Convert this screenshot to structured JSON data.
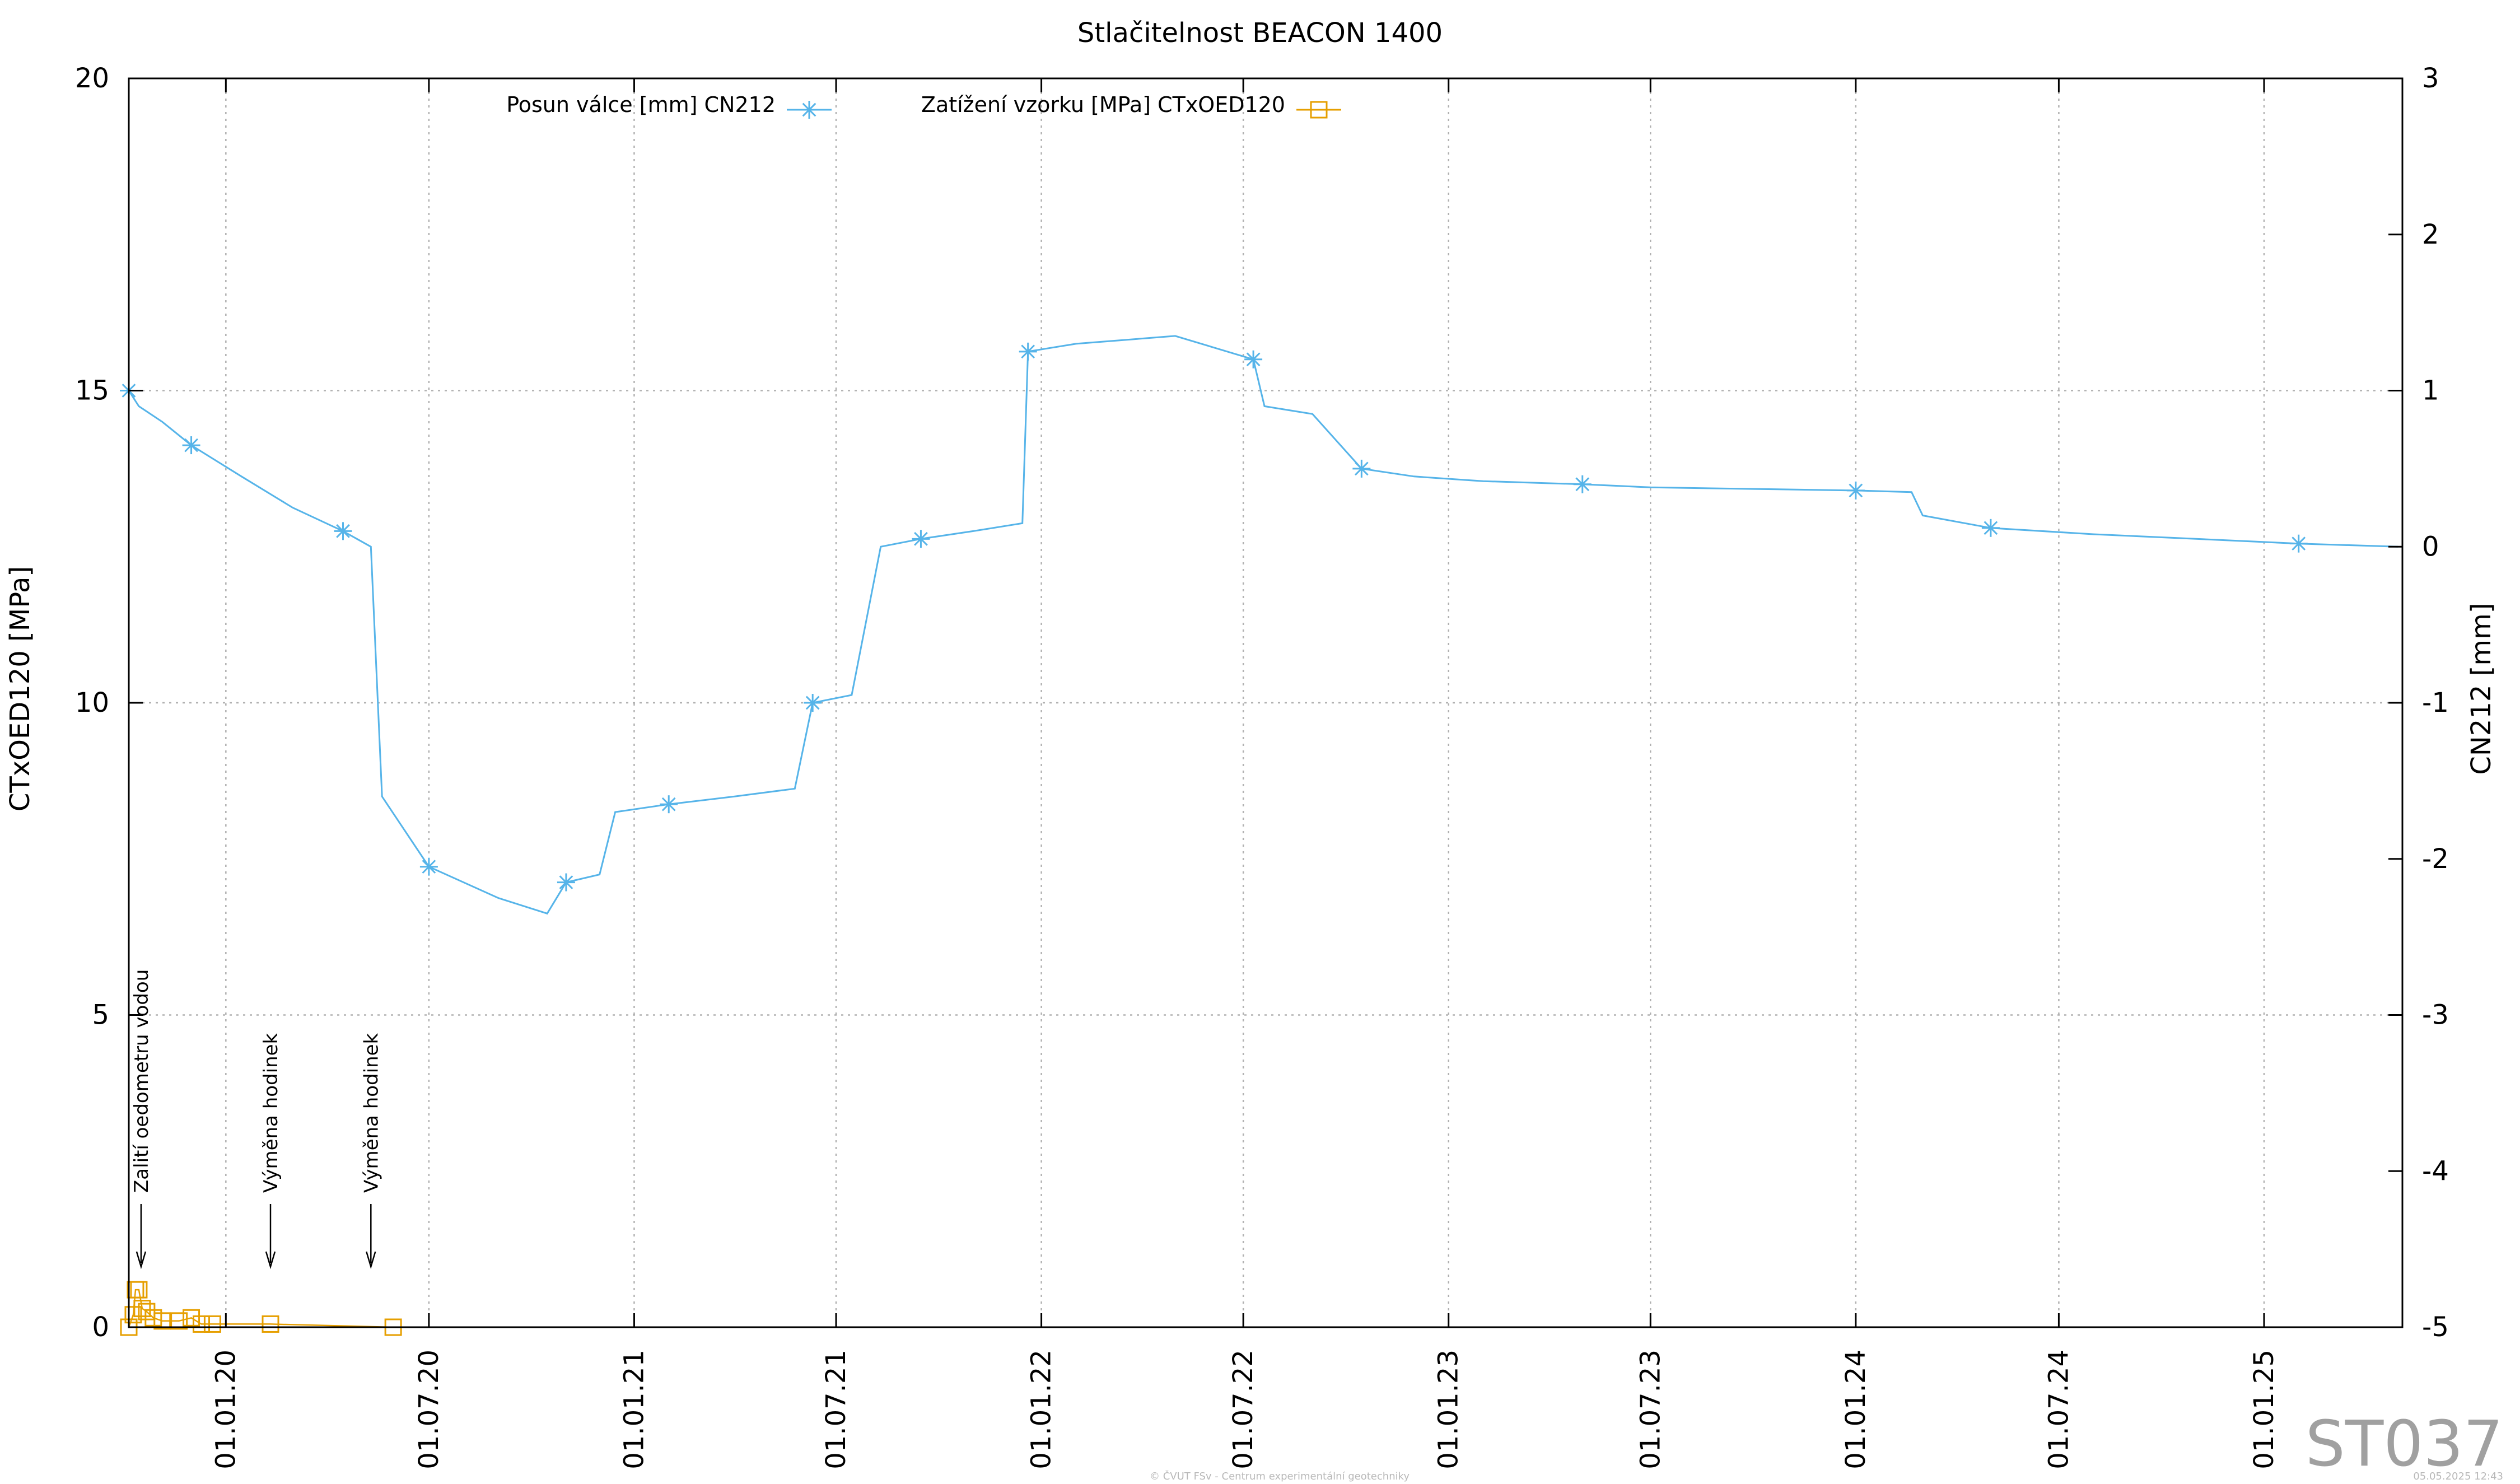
{
  "chart_data": {
    "type": "line",
    "title": "Stlačitelnost BEACON 1400",
    "ylabel": "CTxOED120 [MPa]",
    "y2label": "CN212 [mm]",
    "ylim": [
      0,
      20
    ],
    "y2lim": [
      -5,
      3
    ],
    "xlim": [
      "2019-10-06",
      "2025-05-05"
    ],
    "yticks": [
      "0",
      "5",
      "10",
      "15",
      "20"
    ],
    "y2ticks": [
      "-5",
      "-4",
      "-3",
      "-2",
      "-1",
      "0",
      "1",
      "2",
      "3"
    ],
    "xticks": [
      {
        "date": "2020-01-01",
        "label": "01.01.20"
      },
      {
        "date": "2020-07-01",
        "label": "01.07.20"
      },
      {
        "date": "2021-01-01",
        "label": "01.01.21"
      },
      {
        "date": "2021-07-01",
        "label": "01.07.21"
      },
      {
        "date": "2022-01-01",
        "label": "01.01.22"
      },
      {
        "date": "2022-07-01",
        "label": "01.07.22"
      },
      {
        "date": "2023-01-01",
        "label": "01.01.23"
      },
      {
        "date": "2023-07-01",
        "label": "01.07.23"
      },
      {
        "date": "2024-01-01",
        "label": "01.01.24"
      },
      {
        "date": "2024-07-01",
        "label": "01.07.24"
      },
      {
        "date": "2025-01-01",
        "label": "01.01.25"
      }
    ],
    "grid": true,
    "legend_position": "top",
    "series": [
      {
        "name": "Posun válce [mm] CN212",
        "axis": "right",
        "color": "#56b4e9",
        "marker": "asterisk",
        "x": [
          "2019-10-06",
          "2019-10-15",
          "2019-11-05",
          "2019-12-01",
          "2020-01-15",
          "2020-03-01",
          "2020-04-15",
          "2020-05-10",
          "2020-05-20",
          "2020-07-01",
          "2020-09-01",
          "2020-10-15",
          "2020-11-01",
          "2020-12-01",
          "2020-12-15",
          "2021-02-01",
          "2021-04-01",
          "2021-05-25",
          "2021-06-10",
          "2021-07-15",
          "2021-08-10",
          "2021-09-15",
          "2021-11-01",
          "2021-12-15",
          "2021-12-20",
          "2022-02-01",
          "2022-05-01",
          "2022-07-10",
          "2022-07-20",
          "2022-09-01",
          "2022-10-15",
          "2022-12-01",
          "2023-02-01",
          "2023-05-01",
          "2023-07-01",
          "2023-10-01",
          "2024-01-01",
          "2024-02-20",
          "2024-03-01",
          "2024-05-01",
          "2024-08-01",
          "2024-11-01",
          "2025-02-01",
          "2025-05-01"
        ],
        "y": [
          1.0,
          0.9,
          0.8,
          0.65,
          0.45,
          0.25,
          0.1,
          0.0,
          -1.6,
          -2.05,
          -2.25,
          -2.35,
          -2.15,
          -2.1,
          -1.7,
          -1.65,
          -1.6,
          -1.55,
          -1.0,
          -0.95,
          0.0,
          0.05,
          0.1,
          0.15,
          1.25,
          1.3,
          1.35,
          1.2,
          0.9,
          0.85,
          0.5,
          0.45,
          0.42,
          0.4,
          0.38,
          0.37,
          0.36,
          0.35,
          0.2,
          0.12,
          0.08,
          0.05,
          0.02,
          0.0
        ]
      },
      {
        "name": "Zatížení vzorku [MPa] CTxOED120",
        "axis": "left",
        "color": "#e69f00",
        "marker": "square",
        "x": [
          "2019-10-06",
          "2019-10-10",
          "2019-10-12",
          "2019-10-15",
          "2019-10-18",
          "2019-10-22",
          "2019-10-28",
          "2019-11-05",
          "2019-11-20",
          "2019-12-01",
          "2019-12-10",
          "2019-12-20",
          "2020-02-10",
          "2020-05-30"
        ],
        "y": [
          0,
          0.2,
          0.6,
          0.6,
          0.3,
          0.25,
          0.15,
          0.1,
          0.1,
          0.15,
          0.05,
          0.05,
          0.05,
          0
        ]
      }
    ],
    "annotations": [
      {
        "text": "Zalití oedometru vodou",
        "date": "2019-10-17"
      },
      {
        "text": "Výměna hodinek",
        "date": "2020-02-10"
      },
      {
        "text": "Výměna hodinek",
        "date": "2020-05-10"
      }
    ]
  },
  "stamp": "ST037",
  "footer_center": "© ČVUT FSv - Centrum experimentální geotechniky",
  "footer_right": "05.05.2025 12:43"
}
